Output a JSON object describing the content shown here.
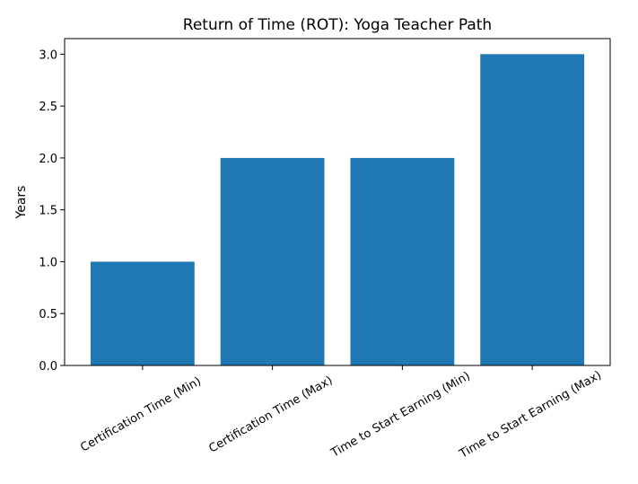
{
  "chart_data": {
    "type": "bar",
    "title": "Return of Time (ROT): Yoga Teacher Path",
    "xlabel": "",
    "ylabel": "Years",
    "categories": [
      "Certification Time (Min)",
      "Certification Time (Max)",
      "Time to Start Earning (Min)",
      "Time to Start Earning (Max)"
    ],
    "values": [
      1,
      2,
      2,
      3
    ],
    "ylim": [
      0,
      3.15
    ],
    "yticks": [
      0.0,
      0.5,
      1.0,
      1.5,
      2.0,
      2.5,
      3.0
    ],
    "grid": false,
    "bar_color": "#1f77b4"
  }
}
